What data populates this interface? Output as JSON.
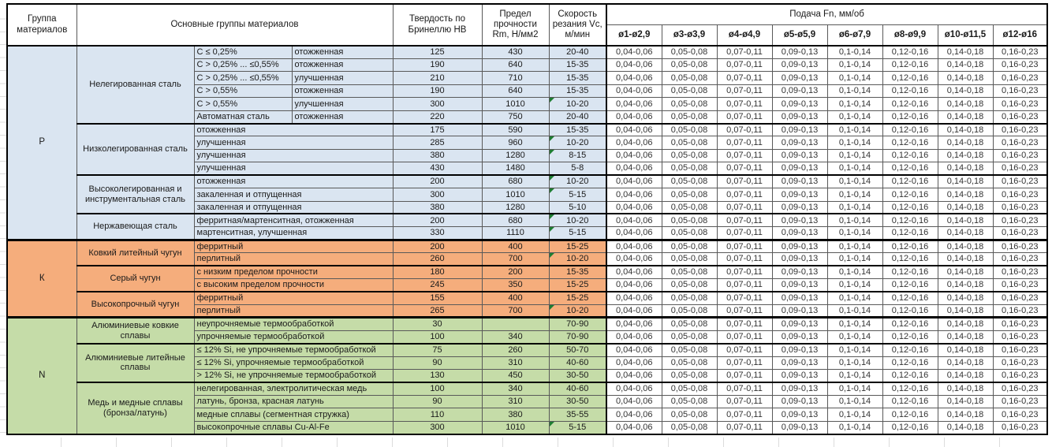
{
  "header": {
    "col_group": "Группа материалов",
    "col_material": "Основные группы материалов",
    "col_hardness": "Твердость по Бринеллю HB",
    "col_strength": "Предел прочности Rm, Н/мм2",
    "col_speed": "Скорость резания Vc, м/мин",
    "col_feed": "Подача Fn, мм/об",
    "feed_columns": [
      "ø1-ø2,9",
      "ø3-ø3,9",
      "ø4-ø4,9",
      "ø5-ø5,9",
      "ø6-ø7,9",
      "ø8-ø9,9",
      "ø10-ø11,5",
      "ø12-ø16"
    ]
  },
  "feed_values": [
    "0,04-0,06",
    "0,05-0,08",
    "0,07-0,11",
    "0,09-0,13",
    "0,1-0,14",
    "0,12-0,16",
    "0,14-0,18",
    "0,16-0,23"
  ],
  "marker_color": "#1e7d32",
  "sections": [
    {
      "group": "P",
      "color": "#DAE5F1",
      "subgroups": [
        {
          "label": "Нелегированная сталь",
          "split": true,
          "rows": [
            {
              "cond1": "C ≤ 0,25%",
              "cond2": "отожженная",
              "hb": "125",
              "rm": "430",
              "vc": "20-40",
              "marker": false
            },
            {
              "cond1": "C > 0,25% ... ≤0,55%",
              "cond2": "отожженная",
              "hb": "190",
              "rm": "640",
              "vc": "15-35",
              "marker": false
            },
            {
              "cond1": "C > 0,25% ... ≤0,55%",
              "cond2": "улучшенная",
              "hb": "210",
              "rm": "710",
              "vc": "15-35",
              "marker": false
            },
            {
              "cond1": "C > 0,55%",
              "cond2": "отожженная",
              "hb": "190",
              "rm": "640",
              "vc": "15-35",
              "marker": false
            },
            {
              "cond1": "C > 0,55%",
              "cond2": "улучшенная",
              "hb": "300",
              "rm": "1010",
              "vc": "10-20",
              "marker": true
            },
            {
              "cond1": "Автоматная сталь",
              "cond2": "отожженная",
              "hb": "220",
              "rm": "750",
              "vc": "20-40",
              "marker": false
            }
          ]
        },
        {
          "label": "Низколегированная сталь",
          "split": false,
          "rows": [
            {
              "desc": "отожженная",
              "hb": "175",
              "rm": "590",
              "vc": "15-35",
              "marker": false
            },
            {
              "desc": "улучшенная",
              "hb": "285",
              "rm": "960",
              "vc": "10-20",
              "marker": true
            },
            {
              "desc": "улучшенная",
              "hb": "380",
              "rm": "1280",
              "vc": "8-15",
              "marker": true
            },
            {
              "desc": "улучшенная",
              "hb": "430",
              "rm": "1480",
              "vc": "5-8",
              "marker": false
            }
          ]
        },
        {
          "label": "Высоколегированная и инструментальная сталь",
          "split": false,
          "rows": [
            {
              "desc": "отожженная",
              "hb": "200",
              "rm": "680",
              "vc": "10-20",
              "marker": true
            },
            {
              "desc": "закаленная и отпущенная",
              "hb": "300",
              "rm": "1010",
              "vc": "5-15",
              "marker": true
            },
            {
              "desc": "закаленная и отпущенная",
              "hb": "380",
              "rm": "1280",
              "vc": "5-10",
              "marker": false
            }
          ]
        },
        {
          "label": "Нержавеющая сталь",
          "split": false,
          "rows": [
            {
              "desc": "ферритная/мартенситная, отожженная",
              "hb": "200",
              "rm": "680",
              "vc": "10-20",
              "marker": true
            },
            {
              "desc": "мартенситная, улучшенная",
              "hb": "330",
              "rm": "1110",
              "vc": "5-15",
              "marker": true
            }
          ]
        }
      ]
    },
    {
      "group": "К",
      "color": "#F5AD7C",
      "subgroups": [
        {
          "label": "Ковкий литейный чугун",
          "split": false,
          "rows": [
            {
              "desc": "ферритный",
              "hb": "200",
              "rm": "400",
              "vc": "15-25",
              "marker": false
            },
            {
              "desc": "перлитный",
              "hb": "260",
              "rm": "700",
              "vc": "10-20",
              "marker": true
            }
          ]
        },
        {
          "label": "Серый чугун",
          "split": false,
          "rows": [
            {
              "desc": "с низким пределом прочности",
              "hb": "180",
              "rm": "200",
              "vc": "15-35",
              "marker": false
            },
            {
              "desc": "с высоким пределом прочности",
              "hb": "245",
              "rm": "350",
              "vc": "15-25",
              "marker": false
            }
          ]
        },
        {
          "label": "Высокопрочный чугун",
          "split": false,
          "rows": [
            {
              "desc": "ферритный",
              "hb": "155",
              "rm": "400",
              "vc": "15-25",
              "marker": false
            },
            {
              "desc": "перлитный",
              "hb": "265",
              "rm": "700",
              "vc": "10-20",
              "marker": true
            }
          ]
        }
      ]
    },
    {
      "group": "N",
      "color": "#C5DCA8",
      "subgroups": [
        {
          "label": "Алюминиевые ковкие сплавы",
          "split": false,
          "rows": [
            {
              "desc": "неупрочняемые термообработкой",
              "hb": "30",
              "rm": "",
              "vc": "70-90",
              "marker": false
            },
            {
              "desc": "упрочняемые термообработкой",
              "hb": "100",
              "rm": "340",
              "vc": "70-90",
              "marker": false
            }
          ]
        },
        {
          "label": "Алюминиевые литейные сплавы",
          "split": false,
          "rows": [
            {
              "desc": "≤ 12% Si, не упрочняемые термообработкой",
              "hb": "75",
              "rm": "260",
              "vc": "50-70",
              "marker": false
            },
            {
              "desc": "≤ 12% Si, упрочняемые термообработкой",
              "hb": "90",
              "rm": "310",
              "vc": "40-60",
              "marker": false
            },
            {
              "desc": "> 12% Si, не упрочняемые термообработкой",
              "hb": "130",
              "rm": "450",
              "vc": "30-50",
              "marker": false
            }
          ]
        },
        {
          "label": "Медь и медные сплавы (бронза/латунь)",
          "split": false,
          "rows": [
            {
              "desc": "нелегированная, электролитическая медь",
              "hb": "100",
              "rm": "340",
              "vc": "40-60",
              "marker": false
            },
            {
              "desc": "латунь, бронза, красная латунь",
              "hb": "90",
              "rm": "310",
              "vc": "30-50",
              "marker": false
            },
            {
              "desc": "медные сплавы (сегментная стружка)",
              "hb": "110",
              "rm": "380",
              "vc": "35-55",
              "marker": false
            },
            {
              "desc": "высокопрочные сплавы Cu-Al-Fe",
              "hb": "300",
              "rm": "1010",
              "vc": "5-15",
              "marker": true
            }
          ]
        }
      ]
    }
  ]
}
